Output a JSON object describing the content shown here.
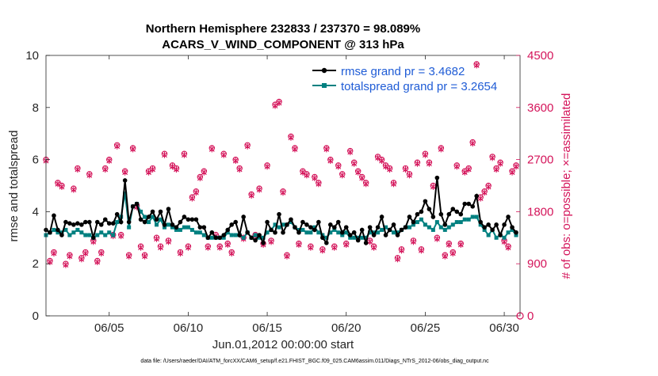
{
  "chart_data": {
    "type": "line",
    "title": "Northern Hemisphere 232833 / 237370 = 98.089%",
    "subtitle": "ACARS_V_WIND_COMPONENT @ 313 hPa",
    "xlabel": "Jun.01,2012 00:00:00 start",
    "ylabel": "rmse and totalspread",
    "ylabel_right": "# of obs: o=possible; ×=assimilated",
    "footnote": "data file: /Users/raeder/DAI/ATM_forcXX/CAM6_setup/f.e21.FHIST_BGC.f09_025.CAM6assim.011/Diags_NTrS_2012-06/obs_diag_output.nc",
    "xlim": [
      1,
      31
    ],
    "ylim": [
      0,
      10
    ],
    "ylim_right": [
      0,
      4500
    ],
    "x_ticks": [
      5,
      10,
      15,
      20,
      25,
      30
    ],
    "x_tick_labels": [
      "06/05",
      "06/10",
      "06/15",
      "06/20",
      "06/25",
      "06/30"
    ],
    "y_ticks": [
      0,
      2,
      4,
      6,
      8,
      10
    ],
    "y_tick_labels": [
      "0",
      "2",
      "4",
      "6",
      "8",
      "10"
    ],
    "y_right_ticks": [
      0,
      900,
      1800,
      2700,
      3600,
      4500
    ],
    "y_right_tick_labels": [
      "0",
      "900",
      "1800",
      "2700",
      "3600",
      "4500"
    ],
    "legend": [
      {
        "label": "rmse grand pr = 3.4682",
        "color": "#000000"
      },
      {
        "label": "totalspread grand pr = 3.2654",
        "color": "#008080"
      }
    ],
    "colors": {
      "rmse": "#000000",
      "totalspread": "#008080",
      "obs": "#d4145a"
    },
    "series": [
      {
        "name": "rmse",
        "x": [
          1.0,
          1.25,
          1.5,
          1.75,
          2.0,
          2.25,
          2.5,
          2.75,
          3.0,
          3.25,
          3.5,
          3.75,
          4.0,
          4.25,
          4.5,
          4.75,
          5.0,
          5.25,
          5.5,
          5.75,
          6.0,
          6.25,
          6.5,
          6.75,
          7.0,
          7.25,
          7.5,
          7.75,
          8.0,
          8.25,
          8.5,
          8.75,
          9.0,
          9.25,
          9.5,
          9.75,
          10.0,
          10.25,
          10.5,
          10.75,
          11.0,
          11.25,
          11.5,
          11.75,
          12.0,
          12.25,
          12.5,
          12.75,
          13.0,
          13.25,
          13.5,
          13.75,
          14.0,
          14.25,
          14.5,
          14.75,
          15.0,
          15.25,
          15.5,
          15.75,
          16.0,
          16.25,
          16.5,
          16.75,
          17.0,
          17.25,
          17.5,
          17.75,
          18.0,
          18.25,
          18.5,
          18.75,
          19.0,
          19.25,
          19.5,
          19.75,
          20.0,
          20.25,
          20.5,
          20.75,
          21.0,
          21.25,
          21.5,
          21.75,
          22.0,
          22.25,
          22.5,
          22.75,
          23.0,
          23.25,
          23.5,
          23.75,
          24.0,
          24.25,
          24.5,
          24.75,
          25.0,
          25.25,
          25.5,
          25.75,
          26.0,
          26.25,
          26.5,
          26.75,
          27.0,
          27.25,
          27.5,
          27.75,
          28.0,
          28.25,
          28.5,
          28.75,
          29.0,
          29.25,
          29.5,
          29.75,
          30.0,
          30.25,
          30.5,
          30.75
        ],
        "values": [
          3.3,
          3.2,
          3.85,
          3.3,
          3.1,
          3.6,
          3.55,
          3.5,
          3.55,
          3.5,
          3.6,
          3.6,
          3.0,
          3.6,
          3.5,
          3.7,
          3.55,
          3.55,
          3.9,
          3.6,
          5.2,
          3.6,
          4.2,
          4.3,
          3.7,
          3.6,
          3.8,
          4.0,
          3.7,
          4.0,
          3.5,
          4.1,
          3.5,
          3.4,
          3.6,
          3.8,
          3.7,
          3.7,
          3.7,
          3.4,
          3.4,
          3.0,
          3.2,
          3.0,
          3.0,
          3.1,
          3.3,
          3.5,
          3.6,
          3.1,
          3.8,
          3.2,
          3.0,
          2.9,
          3.1,
          2.8,
          3.6,
          3.3,
          3.2,
          3.9,
          3.2,
          3.5,
          3.7,
          3.4,
          3.2,
          3.6,
          3.5,
          3.4,
          3.3,
          3.6,
          3.0,
          2.8,
          3.5,
          3.4,
          3.6,
          3.2,
          3.4,
          3.1,
          3.2,
          2.9,
          3.3,
          2.8,
          3.4,
          3.1,
          3.4,
          3.8,
          3.1,
          3.3,
          3.5,
          3.1,
          3.3,
          3.4,
          3.8,
          3.6,
          3.9,
          4.0,
          4.4,
          4.1,
          3.8,
          5.3,
          3.9,
          3.5,
          3.9,
          4.1,
          4.0,
          3.9,
          4.3,
          4.3,
          4.2,
          4.6,
          3.6,
          3.4,
          3.5,
          3.3,
          3.5,
          3.1,
          3.5,
          3.8,
          3.4,
          3.2
        ]
      },
      {
        "name": "totalspread",
        "x": [
          1.0,
          1.25,
          1.5,
          1.75,
          2.0,
          2.25,
          2.5,
          2.75,
          3.0,
          3.25,
          3.5,
          3.75,
          4.0,
          4.25,
          4.5,
          4.75,
          5.0,
          5.25,
          5.5,
          5.75,
          6.0,
          6.25,
          6.5,
          6.75,
          7.0,
          7.25,
          7.5,
          7.75,
          8.0,
          8.25,
          8.5,
          8.75,
          9.0,
          9.25,
          9.5,
          9.75,
          10.0,
          10.25,
          10.5,
          10.75,
          11.0,
          11.25,
          11.5,
          11.75,
          12.0,
          12.25,
          12.5,
          12.75,
          13.0,
          13.25,
          13.5,
          13.75,
          14.0,
          14.25,
          14.5,
          14.75,
          15.0,
          15.25,
          15.5,
          15.75,
          16.0,
          16.25,
          16.5,
          16.75,
          17.0,
          17.25,
          17.5,
          17.75,
          18.0,
          18.25,
          18.5,
          18.75,
          19.0,
          19.25,
          19.5,
          19.75,
          20.0,
          20.25,
          20.5,
          20.75,
          21.0,
          21.25,
          21.5,
          21.75,
          22.0,
          22.25,
          22.5,
          22.75,
          23.0,
          23.25,
          23.5,
          23.75,
          24.0,
          24.25,
          24.5,
          24.75,
          25.0,
          25.25,
          25.5,
          25.75,
          26.0,
          26.25,
          26.5,
          26.75,
          27.0,
          27.25,
          27.5,
          27.75,
          28.0,
          28.25,
          28.5,
          28.75,
          29.0,
          29.25,
          29.5,
          29.75,
          30.0,
          30.25,
          30.5,
          30.75
        ],
        "values": [
          3.1,
          3.2,
          3.3,
          3.2,
          3.2,
          3.3,
          3.1,
          3.2,
          3.3,
          3.2,
          3.1,
          3.1,
          3.0,
          3.1,
          3.2,
          3.1,
          3.2,
          3.1,
          3.6,
          3.8,
          4.7,
          3.4,
          4.2,
          4.3,
          4.0,
          3.8,
          3.6,
          3.8,
          3.5,
          3.7,
          3.4,
          3.5,
          3.4,
          3.3,
          3.3,
          3.4,
          3.4,
          3.3,
          3.2,
          3.2,
          3.1,
          3.0,
          3.0,
          3.0,
          3.0,
          3.0,
          3.2,
          3.1,
          3.1,
          3.1,
          3.0,
          3.2,
          3.0,
          3.1,
          3.0,
          3.0,
          3.2,
          3.3,
          3.5,
          3.4,
          3.5,
          3.5,
          3.6,
          3.4,
          3.3,
          3.3,
          3.2,
          3.2,
          3.4,
          3.2,
          3.1,
          3.0,
          3.2,
          3.3,
          3.2,
          3.1,
          3.2,
          3.0,
          3.0,
          3.0,
          3.0,
          3.0,
          3.2,
          3.2,
          3.2,
          3.3,
          3.4,
          3.3,
          3.2,
          3.2,
          3.3,
          3.4,
          3.4,
          3.5,
          3.6,
          3.7,
          3.5,
          3.4,
          3.3,
          3.6,
          3.4,
          3.3,
          3.4,
          3.5,
          3.6,
          3.6,
          3.7,
          3.7,
          3.8,
          3.8,
          3.5,
          3.3,
          3.1,
          3.3,
          3.0,
          3.1,
          3.0,
          3.2,
          3.3,
          3.1
        ]
      },
      {
        "name": "obs_possible",
        "axis": "right",
        "x": [
          1.0,
          1.25,
          1.5,
          1.75,
          2.0,
          2.25,
          2.5,
          2.75,
          3.0,
          3.25,
          3.5,
          3.75,
          4.0,
          4.25,
          4.5,
          4.75,
          5.0,
          5.25,
          5.5,
          5.75,
          6.0,
          6.25,
          6.5,
          6.75,
          7.0,
          7.25,
          7.5,
          7.75,
          8.0,
          8.25,
          8.5,
          8.75,
          9.0,
          9.25,
          9.5,
          9.75,
          10.0,
          10.25,
          10.5,
          10.75,
          11.0,
          11.25,
          11.5,
          11.75,
          12.0,
          12.25,
          12.5,
          12.75,
          13.0,
          13.25,
          13.5,
          13.75,
          14.0,
          14.25,
          14.5,
          14.75,
          15.0,
          15.25,
          15.5,
          15.75,
          16.0,
          16.25,
          16.5,
          16.75,
          17.0,
          17.25,
          17.5,
          17.75,
          18.0,
          18.25,
          18.5,
          18.75,
          19.0,
          19.25,
          19.5,
          19.75,
          20.0,
          20.25,
          20.5,
          20.75,
          21.0,
          21.25,
          21.5,
          21.75,
          22.0,
          22.25,
          22.5,
          22.75,
          23.0,
          23.25,
          23.5,
          23.75,
          24.0,
          24.25,
          24.5,
          24.75,
          25.0,
          25.25,
          25.5,
          25.75,
          26.0,
          26.25,
          26.5,
          26.75,
          27.0,
          27.25,
          27.5,
          27.75,
          28.0,
          28.25,
          28.5,
          28.75,
          29.0,
          29.25,
          29.5,
          29.75,
          30.0,
          30.25,
          30.5,
          30.75
        ],
        "values": [
          2700,
          950,
          1100,
          2300,
          2250,
          900,
          1050,
          2200,
          2550,
          1000,
          1100,
          2450,
          1300,
          950,
          1100,
          2550,
          2700,
          1400,
          2950,
          1400,
          2500,
          1050,
          2900,
          1900,
          1200,
          1050,
          2500,
          2550,
          1350,
          1200,
          2800,
          1300,
          2600,
          2550,
          1100,
          2800,
          1200,
          2050,
          2150,
          2400,
          2500,
          1200,
          2900,
          1400,
          1200,
          2800,
          1250,
          1100,
          2700,
          2550,
          1350,
          2950,
          2100,
          1400,
          2200,
          1250,
          2600,
          1300,
          3650,
          3700,
          2150,
          1050,
          3100,
          2900,
          1250,
          2500,
          2450,
          1200,
          2400,
          2300,
          1150,
          2900,
          2700,
          1200,
          2600,
          2450,
          1250,
          2850,
          2650,
          2500,
          2400,
          2300,
          1300,
          1200,
          2750,
          2700,
          2600,
          2550,
          2300,
          1000,
          1150,
          2550,
          2450,
          1300,
          2650,
          1150,
          2800,
          2650,
          2250,
          1350,
          2900,
          1050,
          1250,
          1100,
          2600,
          1250,
          2500,
          2550,
          3000,
          4350,
          2050,
          2150,
          2250,
          2750,
          2550,
          2650,
          1300,
          1200,
          2500,
          2600
        ]
      },
      {
        "name": "obs_assimilated",
        "axis": "right",
        "x": [
          1.0,
          1.25,
          1.5,
          1.75,
          2.0,
          2.25,
          2.5,
          2.75,
          3.0,
          3.25,
          3.5,
          3.75,
          4.0,
          4.25,
          4.5,
          4.75,
          5.0,
          5.25,
          5.5,
          5.75,
          6.0,
          6.25,
          6.5,
          6.75,
          7.0,
          7.25,
          7.5,
          7.75,
          8.0,
          8.25,
          8.5,
          8.75,
          9.0,
          9.25,
          9.5,
          9.75,
          10.0,
          10.25,
          10.5,
          10.75,
          11.0,
          11.25,
          11.5,
          11.75,
          12.0,
          12.25,
          12.5,
          12.75,
          13.0,
          13.25,
          13.5,
          13.75,
          14.0,
          14.25,
          14.5,
          14.75,
          15.0,
          15.25,
          15.5,
          15.75,
          16.0,
          16.25,
          16.5,
          16.75,
          17.0,
          17.25,
          17.5,
          17.75,
          18.0,
          18.25,
          18.5,
          18.75,
          19.0,
          19.25,
          19.5,
          19.75,
          20.0,
          20.25,
          20.5,
          20.75,
          21.0,
          21.25,
          21.5,
          21.75,
          22.0,
          22.25,
          22.5,
          22.75,
          23.0,
          23.25,
          23.5,
          23.75,
          24.0,
          24.25,
          24.5,
          24.75,
          25.0,
          25.25,
          25.5,
          25.75,
          26.0,
          26.25,
          26.5,
          26.75,
          27.0,
          27.25,
          27.5,
          27.75,
          28.0,
          28.25,
          28.5,
          28.75,
          29.0,
          29.25,
          29.5,
          29.75,
          30.0,
          30.25,
          30.5,
          30.75
        ],
        "values": [
          2680,
          930,
          1080,
          2280,
          2230,
          880,
          1030,
          2180,
          2530,
          980,
          1080,
          2430,
          1280,
          930,
          1080,
          2530,
          2680,
          1380,
          2930,
          1380,
          2480,
          1030,
          2880,
          1880,
          1180,
          1030,
          2480,
          2530,
          1330,
          1180,
          2780,
          1280,
          2580,
          2530,
          1080,
          2780,
          1180,
          2030,
          2130,
          2380,
          2480,
          1180,
          2880,
          1380,
          1180,
          2780,
          1230,
          1080,
          2680,
          2530,
          1330,
          2930,
          2080,
          1380,
          2180,
          1230,
          2580,
          1280,
          3630,
          3680,
          2130,
          1030,
          3080,
          2880,
          1230,
          2480,
          2430,
          1180,
          2380,
          2280,
          1130,
          2880,
          2680,
          1180,
          2580,
          2430,
          1230,
          2830,
          2630,
          2480,
          2380,
          2280,
          1280,
          1180,
          2730,
          2680,
          2580,
          2530,
          2280,
          980,
          1130,
          2530,
          2430,
          1280,
          2630,
          1130,
          2780,
          2630,
          2230,
          1330,
          2880,
          1030,
          1230,
          1080,
          2580,
          1230,
          2480,
          2530,
          2980,
          4330,
          2030,
          2130,
          2230,
          2730,
          2530,
          2630,
          1280,
          1180,
          2480,
          2580
        ]
      }
    ]
  }
}
